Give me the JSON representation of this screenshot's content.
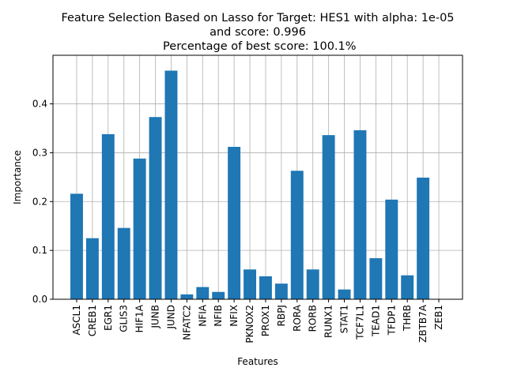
{
  "chart_data": {
    "type": "bar",
    "title_lines": [
      "Feature Selection Based on Lasso for Target: HES1 with alpha: 1e-05",
      "and score: 0.996",
      " Percentage of best score: 100.1%"
    ],
    "xlabel": "Features",
    "ylabel": "Importance",
    "ylim": [
      0,
      0.4995
    ],
    "yticks": [
      0.0,
      0.1,
      0.2,
      0.3,
      0.4
    ],
    "grid": true,
    "bar_color": "#1f77b4",
    "categories": [
      "ASCL1",
      "CREB1",
      "EGR1",
      "GLIS3",
      "HIF1A",
      "JUNB",
      "JUND",
      "NFATC2",
      "NFIA",
      "NFIB",
      "NFIX",
      "PKNOX2",
      "PROX1",
      "RBPJ",
      "RORA",
      "RORB",
      "RUNX1",
      "STAT1",
      "TCF7L1",
      "TEAD1",
      "TFDP1",
      "THRB",
      "ZBTB7A",
      "ZEB1"
    ],
    "values": [
      0.216,
      0.125,
      0.338,
      0.146,
      0.288,
      0.373,
      0.468,
      0.01,
      0.025,
      0.015,
      0.312,
      0.061,
      0.047,
      0.032,
      0.263,
      0.061,
      0.336,
      0.02,
      0.346,
      0.084,
      0.204,
      0.049,
      0.249,
      0.0
    ]
  }
}
